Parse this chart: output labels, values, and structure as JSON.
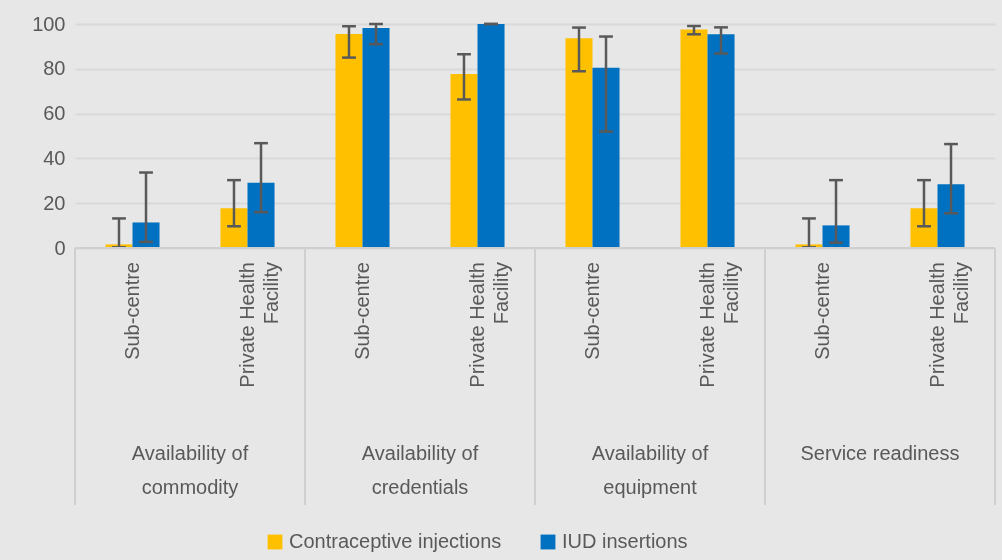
{
  "chart_data": {
    "type": "bar",
    "categories": [
      "Sub-centre",
      "Private Health Facility",
      "Sub-centre",
      "Private Health Facility",
      "Sub-centre",
      "Private Health Facility",
      "Sub-centre",
      "Private Health Facility"
    ],
    "annotations": [
      "Availability of commodity",
      "Availability of credentials",
      "Availability of equipment",
      "Service readiness"
    ],
    "series": [
      {
        "name": "Contraceptive injections",
        "color": "#ffc000",
        "values": [
          1.6,
          17.7,
          95.5,
          77.7,
          93.6,
          97.6,
          1.6,
          17.7
        ],
        "errors": [
          [
            0.3,
            13.2
          ],
          [
            9.7,
            30.3
          ],
          [
            85,
            99
          ],
          [
            66.3,
            86.5
          ],
          [
            78.9,
            98.4
          ],
          [
            95.4,
            99.1
          ],
          [
            0.3,
            13.2
          ],
          [
            9.7,
            30.3
          ]
        ]
      },
      {
        "name": "IUD insertions",
        "color": "#0070c0",
        "values": [
          11.4,
          29.1,
          98.2,
          100,
          80.5,
          95.4,
          10.1,
          28.5
        ],
        "errors": [
          [
            2.7,
            33.7
          ],
          [
            16,
            46.8
          ],
          [
            91,
            100
          ],
          [
            100,
            100
          ],
          [
            52,
            94.4
          ],
          [
            86.8,
            98.5
          ],
          [
            2.4,
            30.3
          ],
          [
            15.5,
            46.4
          ]
        ]
      }
    ],
    "ylim": [
      0,
      100
    ],
    "yticks": [
      0,
      20,
      40,
      60,
      80,
      100
    ],
    "grid": "y",
    "legend": "bottom"
  }
}
